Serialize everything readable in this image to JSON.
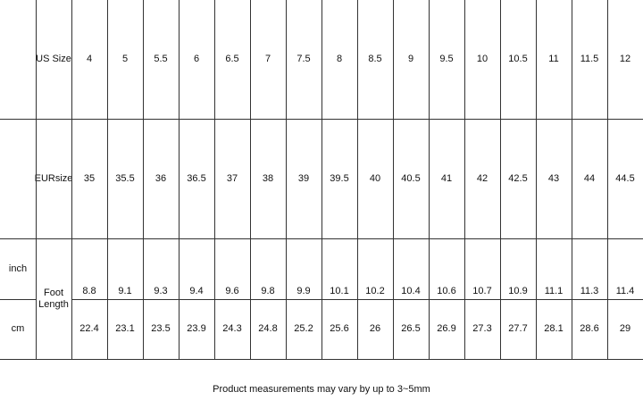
{
  "table": {
    "us_size_label": "US Size",
    "eur_size_label": "EURsize",
    "foot_length_label": "Foot Length",
    "inch_label": "inch",
    "cm_label": "cm",
    "us_sizes": [
      "4",
      "5",
      "5.5",
      "6",
      "6.5",
      "7",
      "7.5",
      "8",
      "8.5",
      "9",
      "9.5",
      "10",
      "10.5",
      "11",
      "11.5",
      "12"
    ],
    "eur_sizes": [
      "35",
      "35.5",
      "36",
      "36.5",
      "37",
      "38",
      "39",
      "39.5",
      "40",
      "40.5",
      "41",
      "42",
      "42.5",
      "43",
      "44",
      "44.5"
    ],
    "foot_length_inch": [
      "8.8",
      "9.1",
      "9.3",
      "9.4",
      "9.6",
      "9.8",
      "9.9",
      "10.1",
      "10.2",
      "10.4",
      "10.6",
      "10.7",
      "10.9",
      "11.1",
      "11.3",
      "11.4"
    ],
    "foot_length_cm": [
      "22.4",
      "23.1",
      "23.5",
      "23.9",
      "24.3",
      "24.8",
      "25.2",
      "25.6",
      "26",
      "26.5",
      "26.9",
      "27.3",
      "27.7",
      "28.1",
      "28.6",
      "29"
    ]
  },
  "note": "Product measurements may vary by up to 3~5mm"
}
